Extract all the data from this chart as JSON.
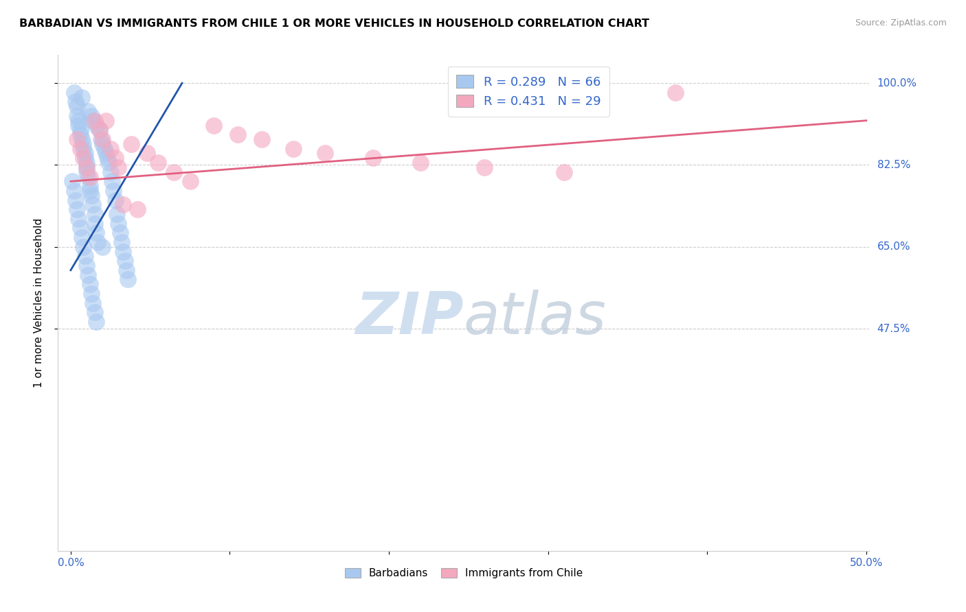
{
  "title": "BARBADIAN VS IMMIGRANTS FROM CHILE 1 OR MORE VEHICLES IN HOUSEHOLD CORRELATION CHART",
  "source": "Source: ZipAtlas.com",
  "ylabel": "1 or more Vehicles in Household",
  "xlim": [
    0.0,
    0.5
  ],
  "ylim": [
    0.0,
    1.0
  ],
  "xtick_vals": [
    0.0,
    0.1,
    0.2,
    0.3,
    0.4,
    0.5
  ],
  "xticklabels": [
    "0.0%",
    "",
    "",
    "",
    "",
    "50.0%"
  ],
  "ytick_vals": [
    0.475,
    0.65,
    0.825,
    1.0
  ],
  "yticklabels": [
    "47.5%",
    "65.0%",
    "82.5%",
    "100.0%"
  ],
  "blue_R": 0.289,
  "blue_N": 66,
  "pink_R": 0.431,
  "pink_N": 29,
  "blue_color": "#A8C8F0",
  "pink_color": "#F4A8C0",
  "blue_line_color": "#2255AA",
  "pink_line_color": "#E06080",
  "watermark_color": "#D0DFF0",
  "blue_x": [
    0.002,
    0.003,
    0.004,
    0.004,
    0.005,
    0.005,
    0.006,
    0.006,
    0.007,
    0.007,
    0.008,
    0.008,
    0.009,
    0.009,
    0.01,
    0.01,
    0.01,
    0.011,
    0.011,
    0.012,
    0.012,
    0.013,
    0.013,
    0.014,
    0.014,
    0.015,
    0.015,
    0.016,
    0.016,
    0.017,
    0.018,
    0.019,
    0.02,
    0.02,
    0.021,
    0.022,
    0.023,
    0.024,
    0.025,
    0.026,
    0.027,
    0.028,
    0.029,
    0.03,
    0.031,
    0.032,
    0.033,
    0.034,
    0.035,
    0.036,
    0.001,
    0.002,
    0.003,
    0.004,
    0.005,
    0.006,
    0.007,
    0.008,
    0.009,
    0.01,
    0.011,
    0.012,
    0.013,
    0.014,
    0.015,
    0.016
  ],
  "blue_y": [
    0.98,
    0.96,
    0.95,
    0.93,
    0.92,
    0.91,
    0.9,
    0.89,
    0.88,
    0.97,
    0.87,
    0.86,
    0.85,
    0.84,
    0.83,
    0.82,
    0.81,
    0.8,
    0.94,
    0.78,
    0.77,
    0.93,
    0.76,
    0.74,
    0.92,
    0.72,
    0.7,
    0.91,
    0.68,
    0.66,
    0.9,
    0.88,
    0.87,
    0.65,
    0.86,
    0.85,
    0.84,
    0.83,
    0.81,
    0.79,
    0.77,
    0.75,
    0.72,
    0.7,
    0.68,
    0.66,
    0.64,
    0.62,
    0.6,
    0.58,
    0.79,
    0.77,
    0.75,
    0.73,
    0.71,
    0.69,
    0.67,
    0.65,
    0.63,
    0.61,
    0.59,
    0.57,
    0.55,
    0.53,
    0.51,
    0.49
  ],
  "pink_x": [
    0.004,
    0.006,
    0.008,
    0.01,
    0.012,
    0.015,
    0.018,
    0.02,
    0.022,
    0.025,
    0.028,
    0.03,
    0.033,
    0.038,
    0.042,
    0.048,
    0.055,
    0.065,
    0.075,
    0.09,
    0.105,
    0.12,
    0.14,
    0.16,
    0.19,
    0.22,
    0.26,
    0.31,
    0.38
  ],
  "pink_y": [
    0.88,
    0.86,
    0.84,
    0.82,
    0.8,
    0.92,
    0.9,
    0.88,
    0.92,
    0.86,
    0.84,
    0.82,
    0.74,
    0.87,
    0.73,
    0.85,
    0.83,
    0.81,
    0.79,
    0.91,
    0.89,
    0.88,
    0.86,
    0.85,
    0.84,
    0.83,
    0.82,
    0.81,
    0.98
  ],
  "blue_line_x": [
    0.0,
    0.07
  ],
  "blue_line_y": [
    0.6,
    1.0
  ],
  "pink_line_x": [
    0.0,
    0.5
  ],
  "pink_line_y": [
    0.79,
    0.92
  ]
}
